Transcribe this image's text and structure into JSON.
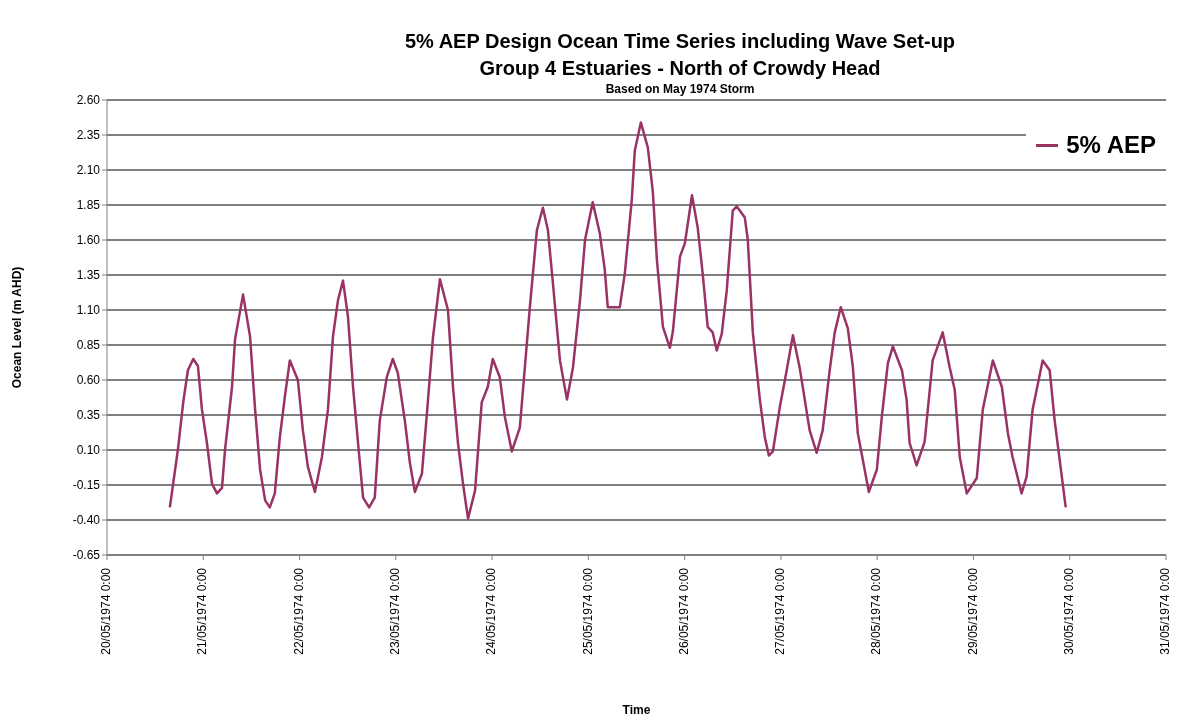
{
  "chart_data": {
    "type": "line",
    "title": "5% AEP Design Ocean Time Series including Wave Set-up\nGroup 4 Estuaries - North of Crowdy Head",
    "subtitle": "Based on May 1974 Storm",
    "xlabel": "Time",
    "ylabel": "Ocean Level (m AHD)",
    "xlim": [
      "1974-05-20T00:00",
      "1974-05-31T00:00"
    ],
    "xticks": [
      {
        "value": "1974-05-20T00:00",
        "label": "20/05/1974 0:00"
      },
      {
        "value": "1974-05-21T00:00",
        "label": "21/05/1974 0:00"
      },
      {
        "value": "1974-05-22T00:00",
        "label": "22/05/1974 0:00"
      },
      {
        "value": "1974-05-23T00:00",
        "label": "23/05/1974 0:00"
      },
      {
        "value": "1974-05-24T00:00",
        "label": "24/05/1974 0:00"
      },
      {
        "value": "1974-05-25T00:00",
        "label": "25/05/1974 0:00"
      },
      {
        "value": "1974-05-26T00:00",
        "label": "26/05/1974 0:00"
      },
      {
        "value": "1974-05-27T00:00",
        "label": "27/05/1974 0:00"
      },
      {
        "value": "1974-05-28T00:00",
        "label": "28/05/1974 0:00"
      },
      {
        "value": "1974-05-29T00:00",
        "label": "29/05/1974 0:00"
      },
      {
        "value": "1974-05-30T00:00",
        "label": "30/05/1974 0:00"
      },
      {
        "value": "1974-05-31T00:00",
        "label": "31/05/1974 0:00"
      }
    ],
    "ylim": [
      -0.65,
      2.6
    ],
    "yticks": [
      {
        "value": -0.65,
        "label": "-0.65"
      },
      {
        "value": -0.4,
        "label": "-0.40"
      },
      {
        "value": -0.15,
        "label": "-0.15"
      },
      {
        "value": 0.1,
        "label": "0.10"
      },
      {
        "value": 0.35,
        "label": "0.35"
      },
      {
        "value": 0.6,
        "label": "0.60"
      },
      {
        "value": 0.85,
        "label": "0.85"
      },
      {
        "value": 1.1,
        "label": "1.10"
      },
      {
        "value": 1.35,
        "label": "1.35"
      },
      {
        "value": 1.6,
        "label": "1.60"
      },
      {
        "value": 1.85,
        "label": "1.85"
      },
      {
        "value": 2.1,
        "label": "2.10"
      },
      {
        "value": 2.35,
        "label": "2.35"
      },
      {
        "value": 2.6,
        "label": "2.60"
      }
    ],
    "grid": "y",
    "legend": "top right",
    "marker": "none",
    "line_style": "solid",
    "x": [
      "1974-05-20T15:40",
      "1974-05-20T17:40",
      "1974-05-20T19:00",
      "1974-05-20T20:10",
      "1974-05-20T21:30",
      "1974-05-20T22:40",
      "1974-05-20T23:40",
      "1974-05-21T00:55",
      "1974-05-21T02:10",
      "1974-05-21T03:25",
      "1974-05-21T04:40",
      "1974-05-21T05:25",
      "1974-05-21T07:10",
      "1974-05-21T07:55",
      "1974-05-21T09:55",
      "1974-05-21T11:40",
      "1974-05-21T12:55",
      "1974-05-21T14:10",
      "1974-05-21T15:25",
      "1974-05-21T16:35",
      "1974-05-21T17:50",
      "1974-05-21T19:05",
      "1974-05-21T20:20",
      "1974-05-21T21:35",
      "1974-05-21T23:35",
      "1974-05-22T00:50",
      "1974-05-22T02:05",
      "1974-05-22T03:50",
      "1974-05-22T05:35",
      "1974-05-22T07:05",
      "1974-05-22T08:20",
      "1974-05-22T09:35",
      "1974-05-22T10:50",
      "1974-05-22T12:05",
      "1974-05-22T13:20",
      "1974-05-22T14:35",
      "1974-05-22T15:50",
      "1974-05-22T17:20",
      "1974-05-22T18:45",
      "1974-05-22T20:00",
      "1974-05-22T21:45",
      "1974-05-22T23:15",
      "1974-05-23T00:30",
      "1974-05-23T02:15",
      "1974-05-23T03:30",
      "1974-05-23T04:45",
      "1974-05-23T06:30",
      "1974-05-23T07:45",
      "1974-05-23T09:15",
      "1974-05-23T11:00",
      "1974-05-23T13:00",
      "1974-05-23T14:15",
      "1974-05-23T15:30",
      "1974-05-23T16:45",
      "1974-05-23T18:00",
      "1974-05-23T19:45",
      "1974-05-23T21:25",
      "1974-05-23T22:55",
      "1974-05-24T00:10",
      "1974-05-24T01:55",
      "1974-05-24T03:10",
      "1974-05-24T04:55",
      "1974-05-24T06:55",
      "1974-05-24T09:25",
      "1974-05-24T11:10",
      "1974-05-24T12:40",
      "1974-05-24T13:55",
      "1974-05-24T15:10",
      "1974-05-24T16:55",
      "1974-05-24T18:40",
      "1974-05-24T20:10",
      "1974-05-24T21:55",
      "1974-05-24T23:10",
      "1974-05-25T01:05",
      "1974-05-25T02:50",
      "1974-05-25T04:05",
      "1974-05-25T04:50",
      "1974-05-25T07:50",
      "1974-05-25T09:05",
      "1974-05-25T10:50",
      "1974-05-25T11:35",
      "1974-05-25T13:05",
      "1974-05-25T14:50",
      "1974-05-25T16:05",
      "1974-05-25T17:05",
      "1974-05-25T18:35",
      "1974-05-25T20:20",
      "1974-05-25T21:05",
      "1974-05-25T22:50",
      "1974-05-26T00:05",
      "1974-05-26T01:50",
      "1974-05-26T03:15",
      "1974-05-26T04:30",
      "1974-05-26T05:45",
      "1974-05-26T07:00",
      "1974-05-26T08:00",
      "1974-05-26T09:15",
      "1974-05-26T10:30",
      "1974-05-26T12:00",
      "1974-05-26T13:00",
      "1974-05-26T15:00",
      "1974-05-26T15:45",
      "1974-05-26T17:00",
      "1974-05-26T18:45",
      "1974-05-26T20:00",
      "1974-05-26T21:00",
      "1974-05-26T22:00",
      "1974-05-26T23:45",
      "1974-05-27T01:00",
      "1974-05-27T03:00",
      "1974-05-27T04:40",
      "1974-05-27T07:10",
      "1974-05-27T08:55",
      "1974-05-27T10:25",
      "1974-05-27T12:10",
      "1974-05-27T13:25",
      "1974-05-27T14:55",
      "1974-05-27T16:40",
      "1974-05-27T17:55",
      "1974-05-27T19:10",
      "1974-05-27T20:25",
      "1974-05-27T21:55",
      "1974-05-27T23:55",
      "1974-05-28T01:10",
      "1974-05-28T02:40",
      "1974-05-28T03:55",
      "1974-05-28T06:10",
      "1974-05-28T07:20",
      "1974-05-28T08:05",
      "1974-05-28T09:50",
      "1974-05-28T11:50",
      "1974-05-28T13:50",
      "1974-05-28T16:20",
      "1974-05-28T18:05",
      "1974-05-28T19:20",
      "1974-05-28T20:35",
      "1974-05-28T22:20",
      "1974-05-29T00:50",
      "1974-05-29T02:20",
      "1974-05-29T04:50",
      "1974-05-29T07:05",
      "1974-05-29T08:35",
      "1974-05-29T09:45",
      "1974-05-29T12:00",
      "1974-05-29T13:15",
      "1974-05-29T14:45",
      "1974-05-29T17:15",
      "1974-05-29T19:00",
      "1974-05-29T20:15",
      "1974-05-29T23:00"
    ],
    "series": [
      {
        "name": "5% AEP",
        "color": "#993366",
        "values": [
          -0.31,
          0.1,
          0.44,
          0.67,
          0.75,
          0.7,
          0.39,
          0.15,
          -0.14,
          -0.21,
          -0.17,
          0.1,
          0.55,
          0.89,
          1.21,
          0.91,
          0.39,
          -0.04,
          -0.26,
          -0.31,
          -0.21,
          0.19,
          0.48,
          0.74,
          0.6,
          0.24,
          -0.02,
          -0.2,
          0.05,
          0.39,
          0.91,
          1.17,
          1.31,
          1.05,
          0.55,
          0.15,
          -0.24,
          -0.31,
          -0.24,
          0.31,
          0.62,
          0.75,
          0.65,
          0.31,
          0.01,
          -0.2,
          -0.07,
          0.36,
          0.9,
          1.32,
          1.1,
          0.55,
          0.15,
          -0.14,
          -0.39,
          -0.19,
          0.44,
          0.55,
          0.75,
          0.62,
          0.34,
          0.09,
          0.26,
          1.12,
          1.67,
          1.83,
          1.67,
          1.29,
          0.74,
          0.46,
          0.69,
          1.17,
          1.6,
          1.87,
          1.65,
          1.39,
          1.12,
          1.12,
          1.36,
          1.89,
          2.24,
          2.44,
          2.26,
          1.94,
          1.46,
          0.98,
          0.83,
          0.95,
          1.48,
          1.58,
          1.92,
          1.69,
          1.36,
          0.98,
          0.94,
          0.81,
          0.93,
          1.24,
          1.81,
          1.84,
          1.76,
          1.6,
          0.94,
          0.46,
          0.19,
          0.06,
          0.09,
          0.41,
          0.6,
          0.92,
          0.69,
          0.24,
          0.08,
          0.24,
          0.67,
          0.94,
          1.12,
          0.97,
          0.7,
          0.22,
          0.03,
          -0.2,
          -0.04,
          0.34,
          0.72,
          0.84,
          0.67,
          0.46,
          0.15,
          -0.01,
          0.16,
          0.74,
          0.94,
          0.69,
          0.53,
          0.05,
          -0.21,
          -0.1,
          0.39,
          0.74,
          0.55,
          0.22,
          0.05,
          -0.21,
          -0.09,
          0.39,
          0.74,
          0.67,
          0.31,
          -0.31
        ]
      }
    ]
  }
}
